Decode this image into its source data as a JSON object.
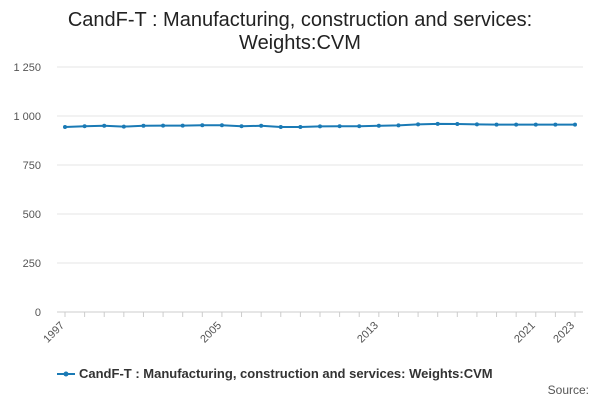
{
  "chart_data": {
    "type": "line",
    "title_lines": [
      "CandF-T : Manufacturing, construction and services:",
      "Weights:CVM"
    ],
    "xlabel": "",
    "ylabel": "",
    "x": [
      1997,
      1998,
      1999,
      2000,
      2001,
      2002,
      2003,
      2004,
      2005,
      2006,
      2007,
      2008,
      2009,
      2010,
      2011,
      2012,
      2013,
      2014,
      2015,
      2016,
      2017,
      2018,
      2019,
      2020,
      2021,
      2022,
      2023
    ],
    "series": [
      {
        "name": "CandF-T : Manufacturing, construction and services: Weights:CVM",
        "color": "#1a7ab5",
        "values": [
          944,
          948,
          950,
          946,
          950,
          951,
          951,
          953,
          953,
          948,
          950,
          944,
          944,
          947,
          948,
          948,
          950,
          952,
          957,
          960,
          959,
          957,
          956,
          956,
          956,
          956,
          956
        ]
      }
    ],
    "ylim": [
      0,
      1250
    ],
    "yticks": [
      {
        "value": 0,
        "label": "0"
      },
      {
        "value": 250,
        "label": "250"
      },
      {
        "value": 500,
        "label": "500"
      },
      {
        "value": 750,
        "label": "750"
      },
      {
        "value": 1000,
        "label": "1 000"
      },
      {
        "value": 1250,
        "label": "1 250"
      }
    ],
    "xticks": [
      {
        "value": 1997,
        "label": "1997"
      },
      {
        "value": 2005,
        "label": "2005"
      },
      {
        "value": 2013,
        "label": "2013"
      },
      {
        "value": 2021,
        "label": "2021"
      },
      {
        "value": 2023,
        "label": "2023"
      }
    ],
    "grid": "horizontal",
    "legend_position": "bottom-left"
  },
  "source_label": "Source:"
}
